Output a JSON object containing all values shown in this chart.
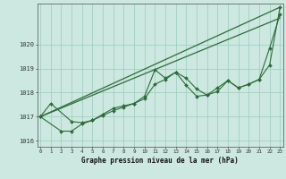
{
  "xlabel": "Graphe pression niveau de la mer (hPa)",
  "background_color": "#cce8e0",
  "grid_color": "#99ccbb",
  "line_color": "#2d6b3a",
  "x_values": [
    0,
    1,
    2,
    3,
    4,
    5,
    6,
    7,
    8,
    9,
    10,
    11,
    12,
    13,
    14,
    15,
    16,
    17,
    18,
    19,
    20,
    21,
    22,
    23
  ],
  "series1": [
    1017.0,
    1017.55,
    null,
    1016.8,
    1016.75,
    1016.85,
    1017.1,
    1017.35,
    1017.45,
    1017.55,
    1017.75,
    1018.35,
    1018.55,
    1018.85,
    1018.3,
    1017.85,
    1017.9,
    1018.05,
    1018.5,
    1018.2,
    1018.35,
    1018.55,
    1019.15,
    1021.55
  ],
  "series2": [
    1017.0,
    null,
    1016.4,
    1016.4,
    1016.7,
    1016.85,
    1017.05,
    1017.25,
    1017.4,
    1017.55,
    1017.85,
    1018.95,
    1018.6,
    1018.85,
    1018.6,
    1018.15,
    1017.9,
    1018.2,
    1018.5,
    1018.2,
    1018.35,
    1018.55,
    1019.85,
    1021.25
  ],
  "line3_x": [
    0,
    23
  ],
  "line3_y": [
    1017.0,
    1021.55
  ],
  "line4_x": [
    0,
    23
  ],
  "line4_y": [
    1017.0,
    1021.1
  ],
  "ylim": [
    1015.75,
    1021.7
  ],
  "yticks": [
    1016,
    1017,
    1018,
    1019,
    1020
  ],
  "xticks": [
    0,
    1,
    2,
    3,
    4,
    5,
    6,
    7,
    8,
    9,
    10,
    11,
    12,
    13,
    14,
    15,
    16,
    17,
    18,
    19,
    20,
    21,
    22,
    23
  ],
  "xlim": [
    -0.3,
    23.3
  ]
}
